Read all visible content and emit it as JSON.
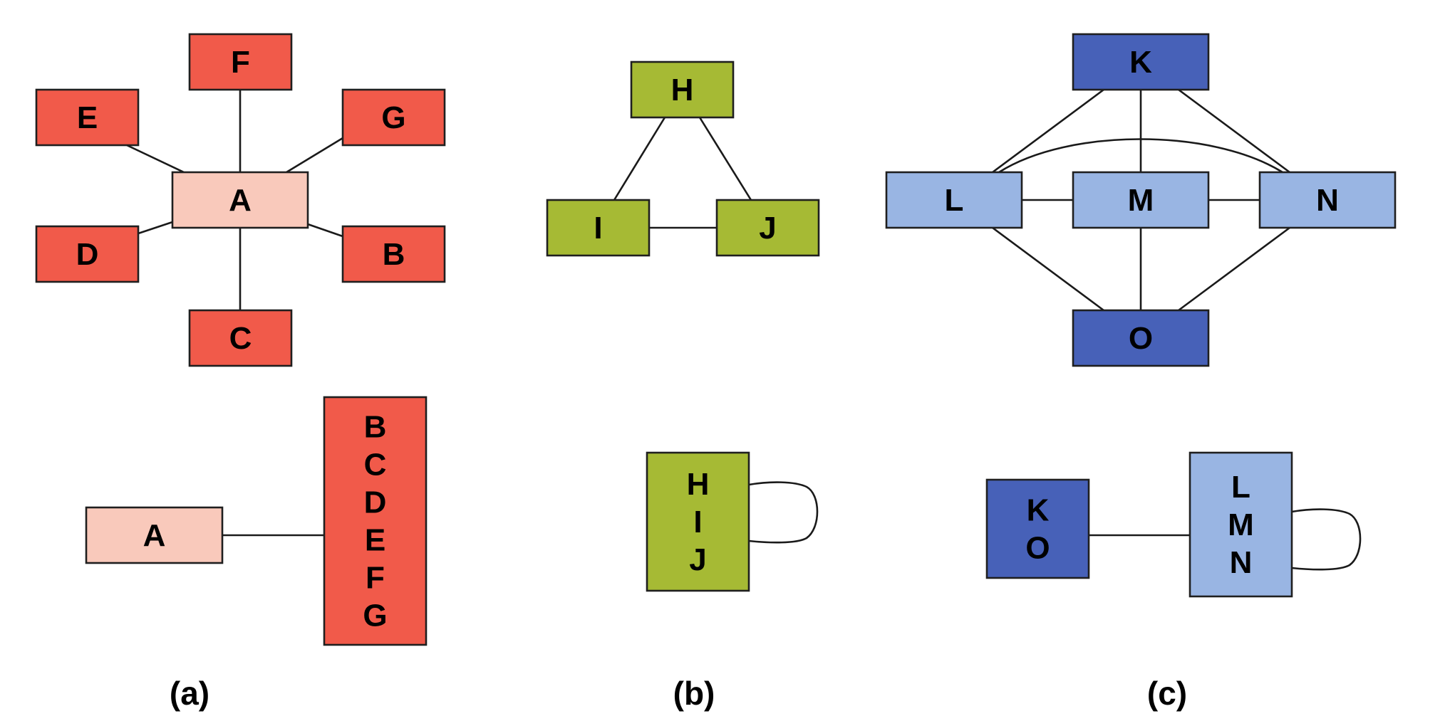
{
  "colors": {
    "red": "#f15a4a",
    "pink": "#f9c9bb",
    "green": "#a6ba34",
    "dark_blue": "#4761b8",
    "light_blue": "#99b5e3",
    "edge": "#1a1a1a"
  },
  "captions": [
    "(a)",
    "(b)",
    "(c)"
  ],
  "graph_a": {
    "nodes": [
      {
        "id": "A",
        "label": "A",
        "color": "pink"
      },
      {
        "id": "B",
        "label": "B",
        "color": "red"
      },
      {
        "id": "C",
        "label": "C",
        "color": "red"
      },
      {
        "id": "D",
        "label": "D",
        "color": "red"
      },
      {
        "id": "E",
        "label": "E",
        "color": "red"
      },
      {
        "id": "F",
        "label": "F",
        "color": "red"
      },
      {
        "id": "G",
        "label": "G",
        "color": "red"
      }
    ],
    "edges": [
      [
        "A",
        "B"
      ],
      [
        "A",
        "C"
      ],
      [
        "A",
        "D"
      ],
      [
        "A",
        "E"
      ],
      [
        "A",
        "F"
      ],
      [
        "A",
        "G"
      ]
    ]
  },
  "graph_b": {
    "nodes": [
      {
        "id": "H",
        "label": "H",
        "color": "green"
      },
      {
        "id": "I",
        "label": "I",
        "color": "green"
      },
      {
        "id": "J",
        "label": "J",
        "color": "green"
      }
    ],
    "edges": [
      [
        "H",
        "I"
      ],
      [
        "H",
        "J"
      ],
      [
        "I",
        "J"
      ]
    ]
  },
  "graph_c": {
    "nodes": [
      {
        "id": "K",
        "label": "K",
        "color": "dark_blue"
      },
      {
        "id": "L",
        "label": "L",
        "color": "light_blue"
      },
      {
        "id": "M",
        "label": "M",
        "color": "light_blue"
      },
      {
        "id": "N",
        "label": "N",
        "color": "light_blue"
      },
      {
        "id": "O",
        "label": "O",
        "color": "dark_blue"
      }
    ],
    "edges": [
      [
        "K",
        "L"
      ],
      [
        "K",
        "M"
      ],
      [
        "K",
        "N"
      ],
      [
        "L",
        "M"
      ],
      [
        "M",
        "N"
      ],
      [
        "L",
        "N"
      ],
      [
        "L",
        "O"
      ],
      [
        "M",
        "O"
      ],
      [
        "N",
        "O"
      ]
    ]
  },
  "quotient_a": {
    "nodes": [
      {
        "id": "A",
        "lines": [
          "A"
        ],
        "color": "pink"
      },
      {
        "id": "BCDEFG",
        "lines": [
          "B",
          "C",
          "D",
          "E",
          "F",
          "G"
        ],
        "color": "red"
      }
    ],
    "edges": [
      [
        "A",
        "BCDEFG"
      ]
    ]
  },
  "quotient_b": {
    "nodes": [
      {
        "id": "HIJ",
        "lines": [
          "H",
          "I",
          "J"
        ],
        "color": "green"
      }
    ],
    "self_loops": [
      "HIJ"
    ]
  },
  "quotient_c": {
    "nodes": [
      {
        "id": "KO",
        "lines": [
          "K",
          "O"
        ],
        "color": "dark_blue"
      },
      {
        "id": "LMN",
        "lines": [
          "L",
          "M",
          "N"
        ],
        "color": "light_blue"
      }
    ],
    "edges": [
      [
        "KO",
        "LMN"
      ]
    ],
    "self_loops": [
      "LMN"
    ]
  }
}
